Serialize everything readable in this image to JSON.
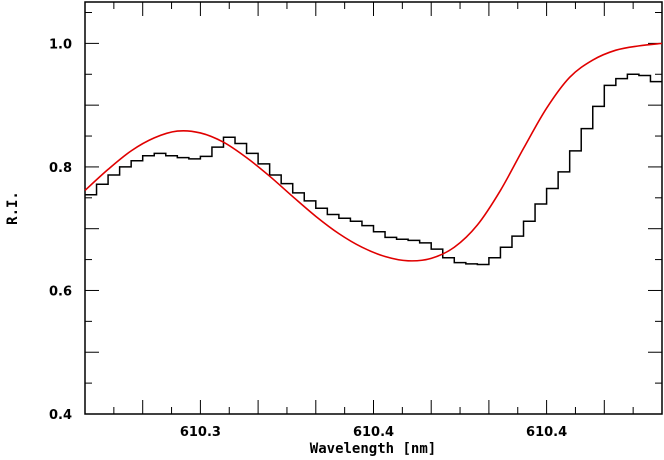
{
  "chart_data": {
    "type": "line",
    "xlabel": "Wavelength [nm]",
    "ylabel": "R.I.",
    "xlim": [
      610.25,
      610.5
    ],
    "ylim": [
      0.4,
      1.067
    ],
    "x_ticks": [
      {
        "value": 610.3,
        "label": "610.3"
      },
      {
        "value": 610.375,
        "label": "610.4"
      },
      {
        "value": 610.45,
        "label": "610.4"
      }
    ],
    "y_ticks": [
      {
        "value": 0.4,
        "label": "0.4"
      },
      {
        "value": 0.6,
        "label": "0.6"
      },
      {
        "value": 0.8,
        "label": "0.8"
      },
      {
        "value": 1.0,
        "label": "1.0"
      }
    ],
    "grid": false,
    "series": [
      {
        "style": "step",
        "color": "#000000",
        "x": [
          610.25,
          610.255,
          610.26,
          610.265,
          610.27,
          610.275,
          610.28,
          610.285,
          610.29,
          610.295,
          610.3,
          610.305,
          610.31,
          610.315,
          610.32,
          610.325,
          610.33,
          610.335,
          610.34,
          610.345,
          610.35,
          610.355,
          610.36,
          610.365,
          610.37,
          610.375,
          610.38,
          610.385,
          610.39,
          610.395,
          610.4,
          610.405,
          610.41,
          610.415,
          610.42,
          610.425,
          610.43,
          610.435,
          610.44,
          610.445,
          610.45,
          610.455,
          610.46,
          610.465,
          610.47,
          610.475,
          610.48,
          610.485,
          610.49,
          610.495
        ],
        "y": [
          0.755,
          0.772,
          0.787,
          0.8,
          0.81,
          0.818,
          0.822,
          0.818,
          0.815,
          0.813,
          0.817,
          0.832,
          0.848,
          0.838,
          0.822,
          0.805,
          0.787,
          0.773,
          0.758,
          0.745,
          0.733,
          0.723,
          0.717,
          0.712,
          0.705,
          0.695,
          0.686,
          0.683,
          0.681,
          0.677,
          0.667,
          0.653,
          0.645,
          0.643,
          0.642,
          0.653,
          0.67,
          0.688,
          0.712,
          0.74,
          0.765,
          0.792,
          0.826,
          0.862,
          0.898,
          0.932,
          0.943,
          0.95,
          0.948,
          0.938
        ]
      },
      {
        "style": "smooth",
        "color": "#e00000",
        "x": [
          610.25,
          610.26,
          610.27,
          610.28,
          610.29,
          610.3,
          610.31,
          610.32,
          610.33,
          610.34,
          610.35,
          610.36,
          610.37,
          610.38,
          610.39,
          610.4,
          610.41,
          610.42,
          610.43,
          610.44,
          610.45,
          610.46,
          610.47,
          610.48,
          610.49,
          610.5
        ],
        "y": [
          0.762,
          0.796,
          0.826,
          0.847,
          0.858,
          0.855,
          0.84,
          0.815,
          0.785,
          0.752,
          0.72,
          0.692,
          0.67,
          0.655,
          0.648,
          0.652,
          0.67,
          0.706,
          0.762,
          0.83,
          0.895,
          0.945,
          0.973,
          0.989,
          0.996,
          1.0
        ]
      }
    ]
  }
}
